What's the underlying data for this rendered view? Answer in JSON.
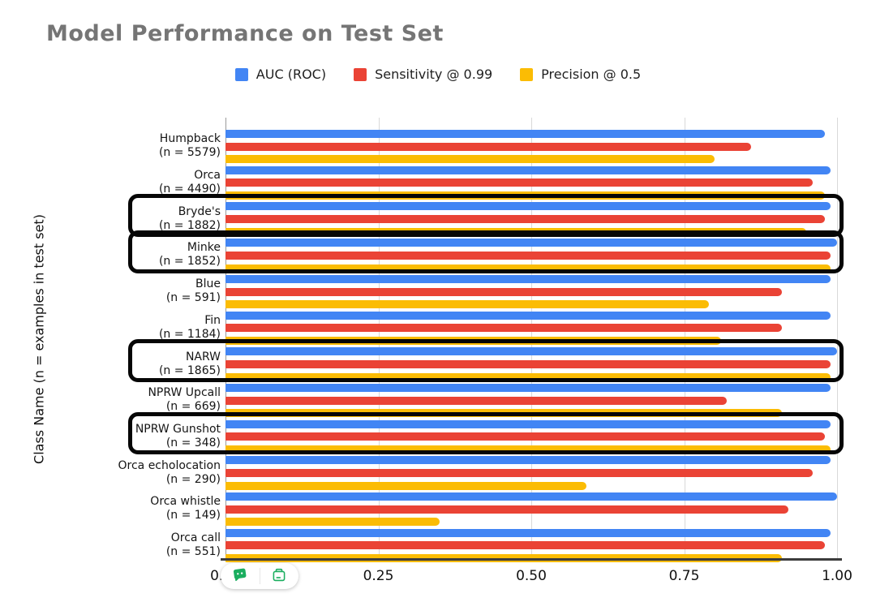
{
  "title": "Model Performance on Test Set",
  "y_axis_label": "Class Name (n = examples in test set)",
  "legend": [
    {
      "label": "AUC (ROC)",
      "color": "#4285F4"
    },
    {
      "label": "Sensitivity @ 0.99",
      "color": "#EA4335"
    },
    {
      "label": "Precision @ 0.5",
      "color": "#FBBC04"
    }
  ],
  "x_tick_labels": [
    "0.00",
    "0.25",
    "0.50",
    "0.75",
    "1.00"
  ],
  "toolbar": {
    "icon_color": "#1AAE5F",
    "buttons": [
      {
        "name": "comment-icon"
      },
      {
        "name": "clipboard-icon"
      }
    ]
  },
  "chart_data": {
    "type": "bar",
    "orientation": "horizontal",
    "title": "Model Performance on Test Set",
    "ylabel": "Class Name (n = examples in test set)",
    "xlabel": "",
    "xlim": [
      0,
      1.0
    ],
    "x_tick_values": [
      0,
      0.25,
      0.5,
      0.75,
      1.0
    ],
    "grid": true,
    "legend_position": "top",
    "series_names": [
      "AUC (ROC)",
      "Sensitivity @ 0.99",
      "Precision @ 0.5"
    ],
    "series_colors": [
      "#4285F4",
      "#EA4335",
      "#FBBC04"
    ],
    "categories": [
      {
        "name": "Humpback",
        "n_label": "(n = 5579)",
        "values": [
          0.98,
          0.86,
          0.8
        ],
        "highlighted": false
      },
      {
        "name": "Orca",
        "n_label": "(n = 4490)",
        "values": [
          0.99,
          0.96,
          0.98
        ],
        "highlighted": false
      },
      {
        "name": "Bryde's",
        "n_label": "(n = 1882)",
        "values": [
          0.99,
          0.98,
          0.95
        ],
        "highlighted": true
      },
      {
        "name": "Minke",
        "n_label": "(n = 1852)",
        "values": [
          1.0,
          0.99,
          0.99
        ],
        "highlighted": true
      },
      {
        "name": "Blue",
        "n_label": "(n = 591)",
        "values": [
          0.99,
          0.91,
          0.79
        ],
        "highlighted": false
      },
      {
        "name": "Fin",
        "n_label": "(n = 1184)",
        "values": [
          0.99,
          0.91,
          0.81
        ],
        "highlighted": false
      },
      {
        "name": "NARW",
        "n_label": "(n = 1865)",
        "values": [
          1.0,
          0.99,
          0.99
        ],
        "highlighted": true
      },
      {
        "name": "NPRW Upcall",
        "n_label": "(n = 669)",
        "values": [
          0.99,
          0.82,
          0.91
        ],
        "highlighted": false
      },
      {
        "name": "NPRW Gunshot",
        "n_label": "(n = 348)",
        "values": [
          0.99,
          0.98,
          0.99
        ],
        "highlighted": true
      },
      {
        "name": "Orca echolocation",
        "n_label": "(n = 290)",
        "values": [
          0.99,
          0.96,
          0.59
        ],
        "highlighted": false
      },
      {
        "name": "Orca whistle",
        "n_label": "(n = 149)",
        "values": [
          1.0,
          0.92,
          0.35
        ],
        "highlighted": false
      },
      {
        "name": "Orca call",
        "n_label": "(n = 551)",
        "values": [
          0.99,
          0.98,
          0.91
        ],
        "highlighted": false
      }
    ]
  }
}
